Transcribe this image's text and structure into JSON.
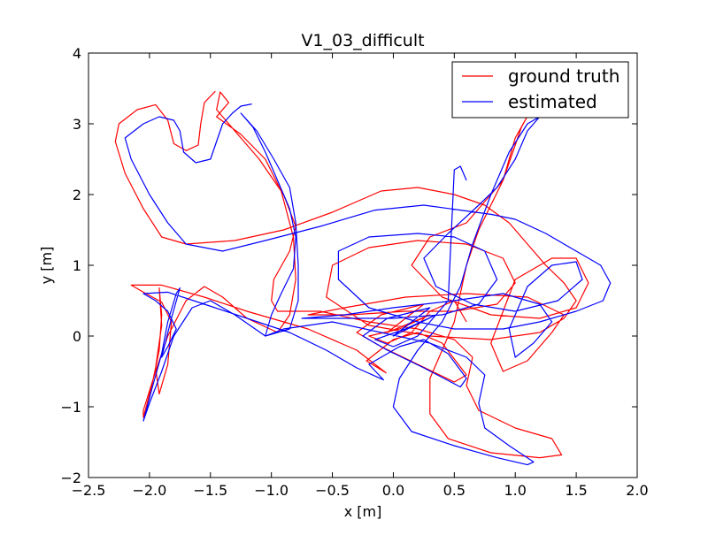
{
  "chart_data": {
    "type": "line",
    "title": "V1_03_difficult",
    "xlabel": "x [m]",
    "ylabel": "y [m]",
    "xlim": [
      -2.5,
      2.0
    ],
    "ylim": [
      -2.0,
      4.0
    ],
    "xticks": [
      -2.5,
      -2.0,
      -1.5,
      -1.0,
      -0.5,
      0.0,
      0.5,
      1.0,
      1.5,
      2.0
    ],
    "xtick_labels": [
      "−2.5",
      "−2.0",
      "−1.5",
      "−1.0",
      "−0.5",
      "0.0",
      "0.5",
      "1.0",
      "1.5",
      "2.0"
    ],
    "yticks": [
      -2,
      -1,
      0,
      1,
      2,
      3,
      4
    ],
    "ytick_labels": [
      "−2",
      "−1",
      "0",
      "1",
      "2",
      "3",
      "4"
    ],
    "grid": false,
    "legend_position": "top-right",
    "series": [
      {
        "name": "ground truth",
        "color": "#ff0000",
        "points": [
          [
            -1.46,
            3.46
          ],
          [
            -1.55,
            3.3
          ],
          [
            -1.58,
            3.0
          ],
          [
            -1.6,
            2.7
          ],
          [
            -1.7,
            2.62
          ],
          [
            -1.8,
            2.72
          ],
          [
            -1.85,
            3.05
          ],
          [
            -1.95,
            3.27
          ],
          [
            -2.1,
            3.2
          ],
          [
            -2.25,
            3.0
          ],
          [
            -2.28,
            2.75
          ],
          [
            -2.2,
            2.3
          ],
          [
            -2.05,
            1.8
          ],
          [
            -1.9,
            1.4
          ],
          [
            -1.7,
            1.3
          ],
          [
            -1.3,
            1.35
          ],
          [
            -0.9,
            1.5
          ],
          [
            -0.5,
            1.75
          ],
          [
            -0.1,
            2.05
          ],
          [
            0.2,
            2.1
          ],
          [
            0.5,
            2.0
          ],
          [
            0.75,
            1.85
          ],
          [
            0.95,
            1.6
          ],
          [
            1.1,
            1.3
          ],
          [
            1.25,
            1.0
          ],
          [
            1.4,
            0.75
          ],
          [
            1.5,
            0.5
          ],
          [
            1.4,
            0.25
          ],
          [
            1.2,
            0.05
          ],
          [
            0.8,
            -0.05
          ],
          [
            0.3,
            0.0
          ],
          [
            -0.2,
            0.15
          ],
          [
            -0.55,
            0.55
          ],
          [
            -0.5,
            1.0
          ],
          [
            -0.2,
            1.25
          ],
          [
            0.2,
            1.35
          ],
          [
            0.6,
            1.3
          ],
          [
            0.9,
            1.1
          ],
          [
            1.0,
            0.75
          ],
          [
            0.85,
            0.45
          ],
          [
            0.5,
            0.35
          ],
          [
            0.1,
            0.35
          ],
          [
            -0.35,
            0.3
          ],
          [
            -0.7,
            0.3
          ],
          [
            -0.4,
            0.4
          ],
          [
            0.1,
            0.55
          ],
          [
            0.6,
            0.6
          ],
          [
            1.1,
            0.55
          ],
          [
            1.4,
            0.3
          ],
          [
            1.3,
            0.05
          ],
          [
            1.1,
            -0.35
          ],
          [
            0.9,
            -0.5
          ],
          [
            0.8,
            -0.1
          ],
          [
            1.0,
            0.8
          ],
          [
            1.3,
            1.1
          ],
          [
            1.5,
            1.1
          ],
          [
            1.6,
            0.75
          ],
          [
            1.5,
            0.4
          ],
          [
            1.2,
            0.25
          ],
          [
            0.8,
            0.3
          ],
          [
            0.4,
            0.55
          ],
          [
            0.15,
            1.0
          ],
          [
            0.3,
            1.4
          ],
          [
            0.6,
            1.6
          ],
          [
            0.9,
            2.2
          ],
          [
            1.05,
            2.95
          ],
          [
            1.13,
            3.2
          ],
          [
            1.0,
            2.8
          ],
          [
            0.9,
            2.2
          ],
          [
            0.7,
            1.5
          ],
          [
            0.6,
            1.0
          ],
          [
            0.55,
            0.6
          ],
          [
            0.5,
            0.2
          ],
          [
            0.4,
            -0.2
          ],
          [
            0.3,
            -0.6
          ],
          [
            0.3,
            -1.1
          ],
          [
            0.45,
            -1.45
          ],
          [
            0.8,
            -1.65
          ],
          [
            1.2,
            -1.72
          ],
          [
            1.38,
            -1.68
          ],
          [
            1.3,
            -1.45
          ],
          [
            1.0,
            -1.3
          ],
          [
            0.7,
            -1.05
          ],
          [
            0.6,
            -0.7
          ],
          [
            0.65,
            -0.3
          ],
          [
            0.5,
            -0.05
          ],
          [
            0.2,
            0.1
          ],
          [
            -0.2,
            0.2
          ],
          [
            -0.6,
            0.35
          ],
          [
            -0.95,
            0.35
          ],
          [
            -1.0,
            0.5
          ],
          [
            -0.98,
            0.8
          ],
          [
            -0.85,
            1.2
          ],
          [
            -0.8,
            1.55
          ],
          [
            -0.9,
            2.0
          ],
          [
            -1.1,
            2.5
          ],
          [
            -1.3,
            2.9
          ],
          [
            -1.45,
            3.2
          ],
          [
            -1.42,
            3.45
          ],
          [
            -1.35,
            3.3
          ],
          [
            -1.45,
            3.1
          ],
          [
            -1.25,
            2.85
          ],
          [
            -1.05,
            2.5
          ],
          [
            -0.92,
            2.05
          ],
          [
            -0.82,
            1.4
          ],
          [
            -0.8,
            0.8
          ],
          [
            -0.85,
            0.3
          ],
          [
            -0.95,
            0.05
          ],
          [
            -1.2,
            0.25
          ],
          [
            -1.4,
            0.55
          ],
          [
            -1.55,
            0.7
          ],
          [
            -1.7,
            0.5
          ],
          [
            -1.85,
            0.0
          ],
          [
            -1.95,
            -0.5
          ],
          [
            -2.05,
            -1.05
          ],
          [
            -2.05,
            -1.15
          ],
          [
            -1.98,
            -0.7
          ],
          [
            -1.92,
            -0.2
          ],
          [
            -1.9,
            0.3
          ],
          [
            -1.92,
            0.68
          ],
          [
            -1.9,
            0.15
          ],
          [
            -1.95,
            -0.45
          ],
          [
            -1.92,
            -0.82
          ],
          [
            -1.85,
            -0.4
          ],
          [
            -1.82,
            0.2
          ],
          [
            -1.9,
            0.48
          ],
          [
            -2.05,
            0.62
          ],
          [
            -2.15,
            0.72
          ],
          [
            -1.9,
            0.72
          ],
          [
            -1.55,
            0.55
          ],
          [
            -1.2,
            0.35
          ],
          [
            -0.7,
            0.1
          ],
          [
            -0.3,
            -0.2
          ],
          [
            -0.06,
            -0.52
          ],
          [
            -0.22,
            -0.35
          ],
          [
            0.0,
            -0.05
          ],
          [
            0.2,
            0.05
          ],
          [
            0.4,
            -0.1
          ],
          [
            0.6,
            -0.55
          ],
          [
            0.5,
            -0.65
          ],
          [
            0.2,
            -0.4
          ],
          [
            -0.1,
            -0.15
          ],
          [
            -0.3,
            0.05
          ],
          [
            -0.1,
            0.3
          ],
          [
            0.25,
            0.45
          ],
          [
            0.1,
            0.25
          ],
          [
            -0.05,
            0.05
          ],
          [
            0.3,
            0.3
          ],
          [
            0.05,
            0.1
          ],
          [
            -0.2,
            0.0
          ],
          [
            -0.05,
            -0.1
          ],
          [
            0.15,
            0.05
          ],
          [
            0.3,
            0.35
          ],
          [
            0.5,
            0.5
          ],
          [
            0.6,
            0.2
          ]
        ]
      },
      {
        "name": "estimated",
        "color": "#0000ff",
        "points": [
          [
            -1.16,
            3.28
          ],
          [
            -1.25,
            3.25
          ],
          [
            -1.32,
            3.15
          ],
          [
            -1.4,
            3.0
          ],
          [
            -1.45,
            2.75
          ],
          [
            -1.5,
            2.5
          ],
          [
            -1.62,
            2.45
          ],
          [
            -1.72,
            2.6
          ],
          [
            -1.75,
            2.9
          ],
          [
            -1.8,
            3.05
          ],
          [
            -1.92,
            3.1
          ],
          [
            -2.05,
            3.0
          ],
          [
            -2.2,
            2.8
          ],
          [
            -2.15,
            2.5
          ],
          [
            -2.0,
            2.0
          ],
          [
            -1.85,
            1.6
          ],
          [
            -1.7,
            1.3
          ],
          [
            -1.4,
            1.2
          ],
          [
            -1.05,
            1.35
          ],
          [
            -0.6,
            1.55
          ],
          [
            -0.15,
            1.78
          ],
          [
            0.25,
            1.85
          ],
          [
            0.55,
            1.78
          ],
          [
            0.8,
            1.72
          ],
          [
            1.0,
            1.65
          ],
          [
            1.25,
            1.45
          ],
          [
            1.5,
            1.2
          ],
          [
            1.7,
            1.0
          ],
          [
            1.78,
            0.75
          ],
          [
            1.72,
            0.5
          ],
          [
            1.5,
            0.35
          ],
          [
            1.2,
            0.2
          ],
          [
            0.9,
            0.1
          ],
          [
            0.5,
            0.1
          ],
          [
            0.2,
            0.2
          ],
          [
            -0.2,
            0.4
          ],
          [
            -0.45,
            0.8
          ],
          [
            -0.45,
            1.2
          ],
          [
            -0.2,
            1.4
          ],
          [
            0.2,
            1.45
          ],
          [
            0.5,
            1.4
          ],
          [
            0.75,
            1.2
          ],
          [
            0.85,
            0.8
          ],
          [
            0.7,
            0.45
          ],
          [
            0.4,
            0.3
          ],
          [
            0.0,
            0.25
          ],
          [
            -0.4,
            0.25
          ],
          [
            -0.75,
            0.25
          ],
          [
            -0.4,
            0.3
          ],
          [
            0.0,
            0.4
          ],
          [
            0.5,
            0.5
          ],
          [
            0.9,
            0.6
          ],
          [
            1.2,
            0.45
          ],
          [
            1.3,
            0.2
          ],
          [
            1.15,
            -0.1
          ],
          [
            1.0,
            -0.3
          ],
          [
            0.95,
            0.1
          ],
          [
            1.1,
            0.7
          ],
          [
            1.3,
            1.0
          ],
          [
            1.5,
            1.05
          ],
          [
            1.55,
            0.8
          ],
          [
            1.35,
            0.5
          ],
          [
            1.0,
            0.35
          ],
          [
            0.65,
            0.45
          ],
          [
            0.35,
            0.7
          ],
          [
            0.25,
            1.1
          ],
          [
            0.45,
            1.45
          ],
          [
            0.7,
            1.85
          ],
          [
            0.85,
            2.1
          ],
          [
            1.0,
            2.5
          ],
          [
            1.1,
            2.9
          ],
          [
            1.2,
            3.1
          ],
          [
            1.1,
            3.0
          ],
          [
            0.95,
            2.6
          ],
          [
            0.8,
            2.0
          ],
          [
            0.65,
            1.3
          ],
          [
            0.55,
            0.7
          ],
          [
            0.4,
            0.2
          ],
          [
            0.2,
            -0.2
          ],
          [
            0.05,
            -0.6
          ],
          [
            0.0,
            -1.0
          ],
          [
            0.15,
            -1.35
          ],
          [
            0.5,
            -1.55
          ],
          [
            0.85,
            -1.72
          ],
          [
            1.1,
            -1.82
          ],
          [
            1.15,
            -1.78
          ],
          [
            0.95,
            -1.55
          ],
          [
            0.75,
            -1.3
          ],
          [
            0.7,
            -0.95
          ],
          [
            0.75,
            -0.55
          ],
          [
            0.6,
            -0.3
          ],
          [
            0.3,
            -0.1
          ],
          [
            -0.1,
            0.05
          ],
          [
            -0.5,
            0.2
          ],
          [
            -0.9,
            0.1
          ],
          [
            -1.05,
            0.0
          ],
          [
            -1.0,
            0.3
          ],
          [
            -0.92,
            0.6
          ],
          [
            -0.82,
            0.95
          ],
          [
            -0.8,
            1.4
          ],
          [
            -0.85,
            1.8
          ],
          [
            -0.95,
            2.2
          ],
          [
            -1.05,
            2.6
          ],
          [
            -1.15,
            2.95
          ],
          [
            -1.25,
            3.15
          ],
          [
            -1.12,
            2.9
          ],
          [
            -0.98,
            2.5
          ],
          [
            -0.85,
            2.1
          ],
          [
            -0.8,
            1.6
          ],
          [
            -0.78,
            1.0
          ],
          [
            -0.78,
            0.5
          ],
          [
            -0.85,
            0.1
          ],
          [
            -1.05,
            0.0
          ],
          [
            -1.3,
            0.3
          ],
          [
            -1.5,
            0.5
          ],
          [
            -1.65,
            0.4
          ],
          [
            -1.8,
            0.0
          ],
          [
            -1.9,
            -0.5
          ],
          [
            -2.0,
            -0.95
          ],
          [
            -2.05,
            -1.2
          ],
          [
            -1.98,
            -0.75
          ],
          [
            -1.9,
            -0.25
          ],
          [
            -1.85,
            0.2
          ],
          [
            -1.78,
            0.6
          ],
          [
            -1.75,
            0.68
          ],
          [
            -1.82,
            0.25
          ],
          [
            -1.9,
            -0.3
          ],
          [
            -1.85,
            -0.15
          ],
          [
            -1.78,
            0.1
          ],
          [
            -1.85,
            0.35
          ],
          [
            -1.95,
            0.5
          ],
          [
            -2.05,
            0.6
          ],
          [
            -1.85,
            0.62
          ],
          [
            -1.55,
            0.45
          ],
          [
            -1.2,
            0.25
          ],
          [
            -0.85,
            0.05
          ],
          [
            -0.55,
            -0.2
          ],
          [
            -0.3,
            -0.45
          ],
          [
            -0.08,
            -0.62
          ],
          [
            -0.2,
            -0.4
          ],
          [
            0.05,
            -0.15
          ],
          [
            0.25,
            -0.05
          ],
          [
            0.45,
            -0.25
          ],
          [
            0.6,
            -0.6
          ],
          [
            0.55,
            -0.72
          ],
          [
            0.25,
            -0.45
          ],
          [
            -0.05,
            -0.2
          ],
          [
            -0.25,
            0.0
          ],
          [
            -0.05,
            0.25
          ],
          [
            0.3,
            0.4
          ],
          [
            0.15,
            0.2
          ],
          [
            0.0,
            0.0
          ],
          [
            0.35,
            0.3
          ],
          [
            0.1,
            0.1
          ],
          [
            -0.15,
            -0.05
          ],
          [
            0.0,
            -0.15
          ],
          [
            0.2,
            0.0
          ],
          [
            0.35,
            0.3
          ],
          [
            0.45,
            0.5
          ],
          [
            0.5,
            2.35
          ],
          [
            0.55,
            2.4
          ],
          [
            0.6,
            2.2
          ]
        ]
      }
    ]
  }
}
